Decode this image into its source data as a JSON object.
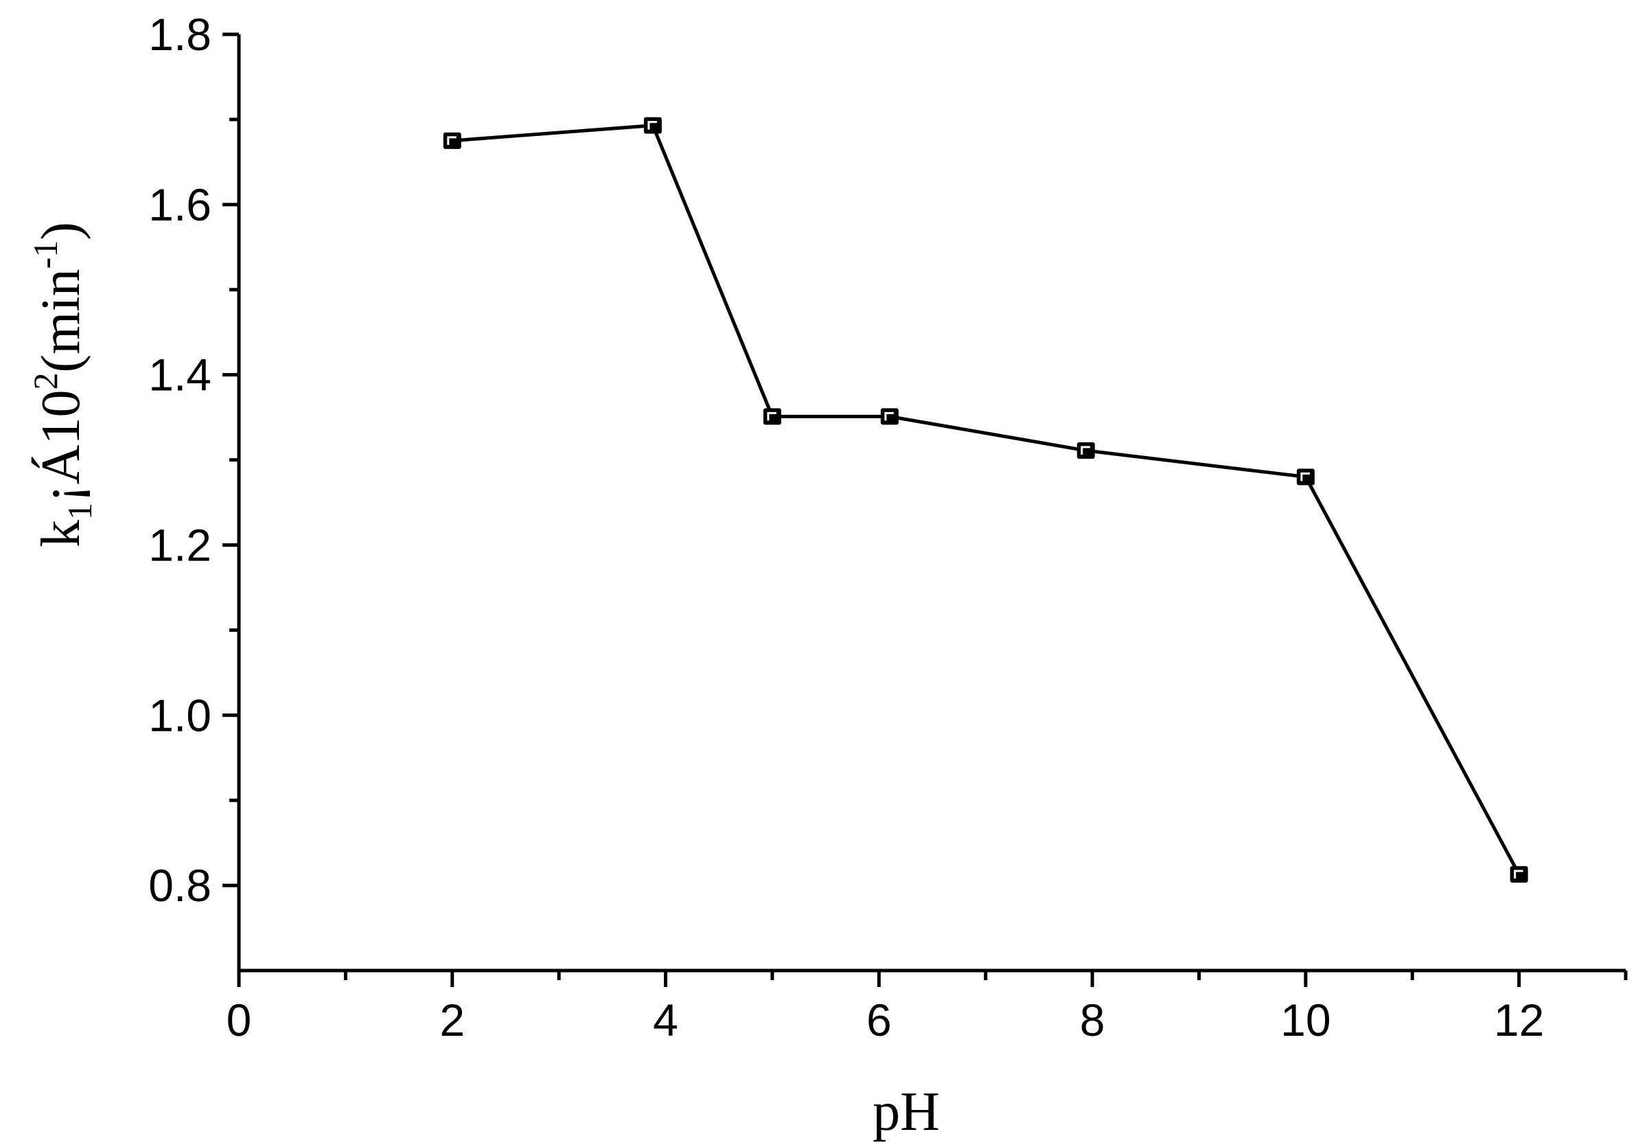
{
  "chart_data": {
    "type": "line",
    "xlabel": "pH",
    "ylabel": {
      "base": "k",
      "base_sub": "1",
      "mid": "¡Á10",
      "mid_sup": "2",
      "unit": "(min",
      "unit_sup": "-1",
      "close": ")"
    },
    "xlim": [
      0,
      13
    ],
    "ylim": [
      0.7,
      1.8
    ],
    "x_ticks": [
      0,
      2,
      4,
      6,
      8,
      10,
      12
    ],
    "x_tick_labels": [
      "0",
      "2",
      "4",
      "6",
      "8",
      "10",
      "12"
    ],
    "x_minor_ticks": [
      1,
      3,
      5,
      7,
      9,
      11,
      13
    ],
    "y_ticks": [
      0.8,
      1.0,
      1.2,
      1.4,
      1.6,
      1.8
    ],
    "y_tick_labels": [
      "0.8",
      "1.0",
      "1.2",
      "1.4",
      "1.6",
      "1.8"
    ],
    "y_minor_ticks": [
      0.9,
      1.1,
      1.3,
      1.5,
      1.7
    ],
    "series": [
      {
        "marker": "square",
        "color": "#000000",
        "x": [
          2.0,
          3.88,
          5.0,
          6.1,
          7.94,
          10.0,
          12.0
        ],
        "y": [
          1.675,
          1.693,
          1.351,
          1.351,
          1.311,
          1.28,
          0.813
        ]
      }
    ]
  }
}
